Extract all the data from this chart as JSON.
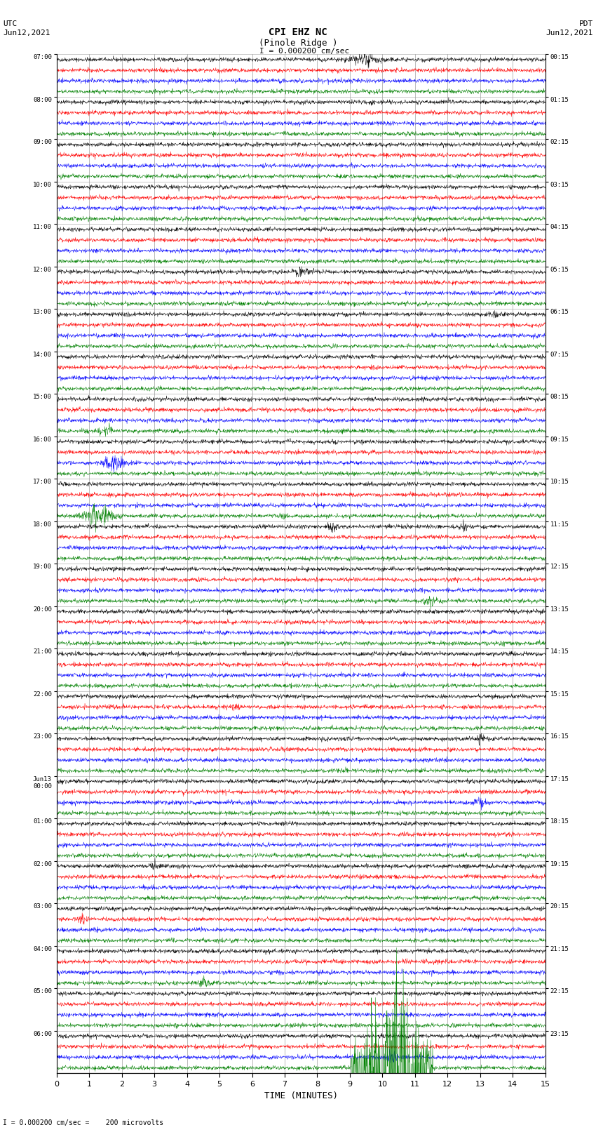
{
  "title_line1": "CPI EHZ NC",
  "title_line2": "(Pinole Ridge )",
  "scale_label": "I = 0.000200 cm/sec",
  "footer_label": "I = 0.000200 cm/sec =    200 microvolts",
  "xlabel": "TIME (MINUTES)",
  "left_times_utc": [
    "07:00",
    "08:00",
    "09:00",
    "10:00",
    "11:00",
    "12:00",
    "13:00",
    "14:00",
    "15:00",
    "16:00",
    "17:00",
    "18:00",
    "19:00",
    "20:00",
    "21:00",
    "22:00",
    "23:00",
    "Jun13\n00:00",
    "01:00",
    "02:00",
    "03:00",
    "04:00",
    "05:00",
    "06:00"
  ],
  "right_times_pdt": [
    "00:15",
    "01:15",
    "02:15",
    "03:15",
    "04:15",
    "05:15",
    "06:15",
    "07:15",
    "08:15",
    "09:15",
    "10:15",
    "11:15",
    "12:15",
    "13:15",
    "14:15",
    "15:15",
    "16:15",
    "17:15",
    "18:15",
    "19:15",
    "20:15",
    "21:15",
    "22:15",
    "23:15"
  ],
  "n_rows": 24,
  "traces_per_row": 4,
  "colors": [
    "black",
    "red",
    "blue",
    "green"
  ],
  "bg_color": "#ffffff",
  "grid_color": "#a0a0a0",
  "noise_amp": 0.03,
  "seed": 42,
  "fig_width": 8.5,
  "fig_height": 16.13,
  "dpi": 100,
  "xmin": 0,
  "xmax": 15,
  "xticks": [
    0,
    1,
    2,
    3,
    4,
    5,
    6,
    7,
    8,
    9,
    10,
    11,
    12,
    13,
    14,
    15
  ]
}
